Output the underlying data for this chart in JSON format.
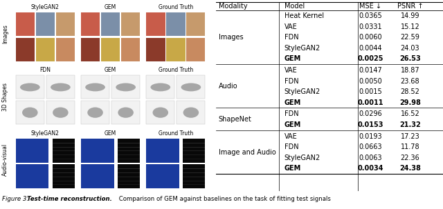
{
  "table": {
    "sections": [
      {
        "modality": "Images",
        "rows": [
          {
            "model": "Heat Kernel",
            "mse": "0.0365",
            "psnr": "14.99",
            "bold": false
          },
          {
            "model": "VAE",
            "mse": "0.0331",
            "psnr": "15.12",
            "bold": false
          },
          {
            "model": "FDN",
            "mse": "0.0060",
            "psnr": "22.59",
            "bold": false
          },
          {
            "model": "StyleGAN2",
            "mse": "0.0044",
            "psnr": "24.03",
            "bold": false
          },
          {
            "model": "GEM",
            "mse": "0.0025",
            "psnr": "26.53",
            "bold": true
          }
        ]
      },
      {
        "modality": "Audio",
        "rows": [
          {
            "model": "VAE",
            "mse": "0.0147",
            "psnr": "18.87",
            "bold": false
          },
          {
            "model": "FDN",
            "mse": "0.0050",
            "psnr": "23.68",
            "bold": false
          },
          {
            "model": "StyleGAN2",
            "mse": "0.0015",
            "psnr": "28.52",
            "bold": false
          },
          {
            "model": "GEM",
            "mse": "0.0011",
            "psnr": "29.98",
            "bold": true
          }
        ]
      },
      {
        "modality": "ShapeNet",
        "rows": [
          {
            "model": "FDN",
            "mse": "0.0296",
            "psnr": "16.52",
            "bold": false
          },
          {
            "model": "GEM",
            "mse": "0.0153",
            "psnr": "21.32",
            "bold": true
          }
        ]
      },
      {
        "modality": "Image and Audio",
        "rows": [
          {
            "model": "VAE",
            "mse": "0.0193",
            "psnr": "17.23",
            "bold": false
          },
          {
            "model": "FDN",
            "mse": "0.0663",
            "psnr": "11.78",
            "bold": false
          },
          {
            "model": "StyleGAN2",
            "mse": "0.0063",
            "psnr": "22.36",
            "bold": false
          },
          {
            "model": "GEM",
            "mse": "0.0034",
            "psnr": "24.38",
            "bold": true
          }
        ]
      }
    ]
  },
  "left_sections": [
    {
      "label": "Images",
      "col_labels": [
        "StyleGAN2",
        "GEM",
        "Ground Truth"
      ],
      "type": "face",
      "face_colors": [
        [
          [
            "#c85c4a",
            "#7b8fa8",
            "#c69a6c"
          ],
          [
            "#c85c4a",
            "#7b8fa8",
            "#c69a6c"
          ],
          [
            "#c85c4a",
            "#7b8fa8",
            "#c69a6c"
          ]
        ],
        [
          [
            "#8b3a2a",
            "#c8a847",
            "#c88a60"
          ],
          [
            "#8b3a2a",
            "#c8a847",
            "#c88a60"
          ],
          [
            "#8b3a2a",
            "#c8a847",
            "#c88a60"
          ]
        ]
      ]
    },
    {
      "label": "3D Shapes",
      "col_labels": [
        "FDN",
        "GEM",
        "Ground Truth"
      ],
      "type": "shape"
    },
    {
      "label": "Audio-visual",
      "col_labels": [
        "StyleGAN2",
        "GEM",
        "Ground Truth"
      ],
      "type": "av",
      "video_color": "#1a3a9e",
      "spec_color": "#080808"
    }
  ],
  "caption_prefix": "Figure 3: ",
  "caption_bold": "Test-time reconstruction.",
  "caption_rest": " Comparison of GEM against baselines on the task of fitting test signals",
  "font_size_table": 7.0,
  "font_size_left": 5.5,
  "font_size_caption": 6.2,
  "fig_width": 6.4,
  "fig_height": 3.03
}
